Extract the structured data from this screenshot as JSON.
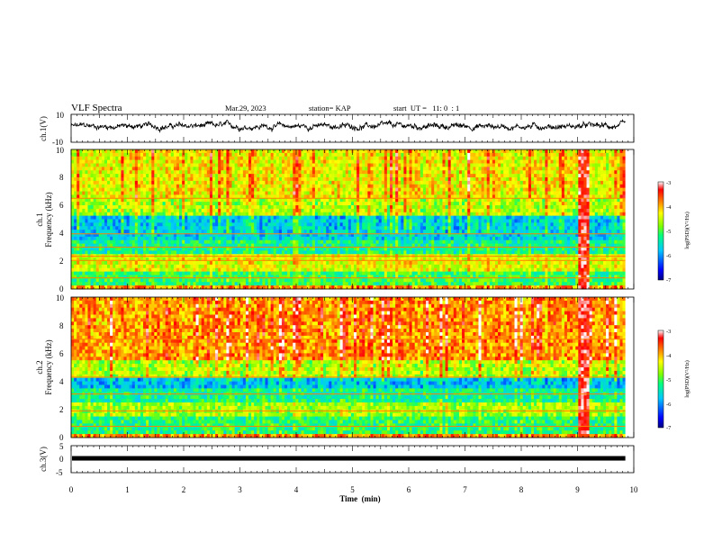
{
  "header": {
    "title": "VLF Spectra",
    "date": "Mar.29, 2023",
    "station": "station= KAP",
    "start": "start  UT =   11: 0  : 1"
  },
  "colors": {
    "colormap": [
      "#00007f",
      "#0000ff",
      "#00a0ff",
      "#00ffff",
      "#00ff80",
      "#7fff00",
      "#ffff00",
      "#ff8000",
      "#ff0000",
      "#ffffff"
    ]
  },
  "chart_data": [
    {
      "type": "line",
      "name": "ch1-waveform",
      "ylabel": "ch.1(V)",
      "ylim": [
        -10,
        10
      ],
      "yticks": [
        "10",
        "-10"
      ],
      "xlim": [
        0,
        9.85
      ],
      "approx_level": 1.5,
      "approx_amplitude": 2.5
    },
    {
      "type": "heatmap",
      "name": "ch1-spectrogram",
      "ylabel_line1": "ch.1",
      "ylabel_line2": "Frequency  (kHz)",
      "ylim": [
        0,
        10
      ],
      "yticks": [
        "0",
        "2",
        "4",
        "6",
        "8",
        "10"
      ],
      "colorbar": {
        "range": [
          -7,
          -3
        ],
        "ticks": [
          "-3",
          "-4",
          "-5",
          "-6",
          "-7"
        ],
        "label": "log(PSD)(V²/Hz)"
      },
      "bands_khz": [
        {
          "f0": 0.0,
          "f1": 0.3,
          "level": -3.9
        },
        {
          "f0": 0.3,
          "f1": 1.2,
          "level": -5.1
        },
        {
          "f0": 1.2,
          "f1": 2.5,
          "level": -4.4
        },
        {
          "f0": 2.5,
          "f1": 3.6,
          "level": -5.3
        },
        {
          "f0": 3.6,
          "f1": 5.2,
          "level": -5.7
        },
        {
          "f0": 5.2,
          "f1": 6.4,
          "level": -4.6
        },
        {
          "f0": 6.4,
          "f1": 10.0,
          "level": -4.3
        }
      ],
      "lines_khz": [
        0.8,
        2.05,
        2.35,
        3.0,
        3.95,
        6.5
      ],
      "burst_min": [
        9.0,
        9.2
      ]
    },
    {
      "type": "heatmap",
      "name": "ch2-spectrogram",
      "ylabel_line1": "ch.2",
      "ylabel_line2": "Frequency  (kHz)",
      "ylim": [
        0,
        10
      ],
      "yticks": [
        "0",
        "2",
        "4",
        "6",
        "8",
        "10"
      ],
      "colorbar": {
        "range": [
          -7,
          -3
        ],
        "ticks": [
          "-3",
          "-4",
          "-5",
          "-6",
          "-7"
        ],
        "label": "log(PSD)(V²/Hz)"
      },
      "bands_khz": [
        {
          "f0": 0.0,
          "f1": 0.3,
          "level": -3.9
        },
        {
          "f0": 0.3,
          "f1": 1.5,
          "level": -5.2
        },
        {
          "f0": 1.5,
          "f1": 2.6,
          "level": -4.7
        },
        {
          "f0": 2.6,
          "f1": 3.4,
          "level": -5.3
        },
        {
          "f0": 3.4,
          "f1": 4.2,
          "level": -5.8
        },
        {
          "f0": 4.2,
          "f1": 5.5,
          "level": -4.6
        },
        {
          "f0": 5.5,
          "f1": 10.0,
          "level": -3.9
        }
      ],
      "lines_khz": [
        0.8,
        1.9,
        3.1,
        4.3,
        7.0
      ],
      "burst_min": [
        9.0,
        9.2
      ]
    },
    {
      "type": "line",
      "name": "ch3-waveform",
      "ylabel": "ch.3(V)",
      "ylim": [
        -5,
        5
      ],
      "yticks": [
        "5",
        "0",
        "-5"
      ],
      "xlim": [
        0,
        9.85
      ],
      "approx_level": 0.6
    }
  ],
  "xaxis": {
    "label": "Time  (min)",
    "ticks": [
      "0",
      "1",
      "2",
      "3",
      "4",
      "5",
      "6",
      "7",
      "8",
      "9",
      "10"
    ],
    "range": [
      0,
      10
    ]
  }
}
